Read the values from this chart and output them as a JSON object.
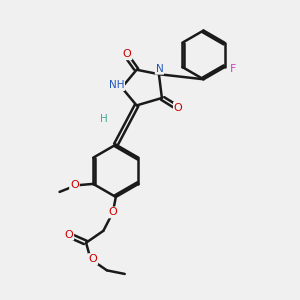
{
  "background_color": "#f0f0f0",
  "bond_color": "#1a1a1a",
  "bond_width": 1.8,
  "figsize": [
    3.0,
    3.0
  ],
  "dpi": 100,
  "xlim": [
    0,
    10
  ],
  "ylim": [
    0,
    10
  ],
  "nh_color": "#2255bb",
  "n_color": "#2255bb",
  "o_color": "#cc0000",
  "f_color": "#cc44cc",
  "h_color": "#44aa99"
}
